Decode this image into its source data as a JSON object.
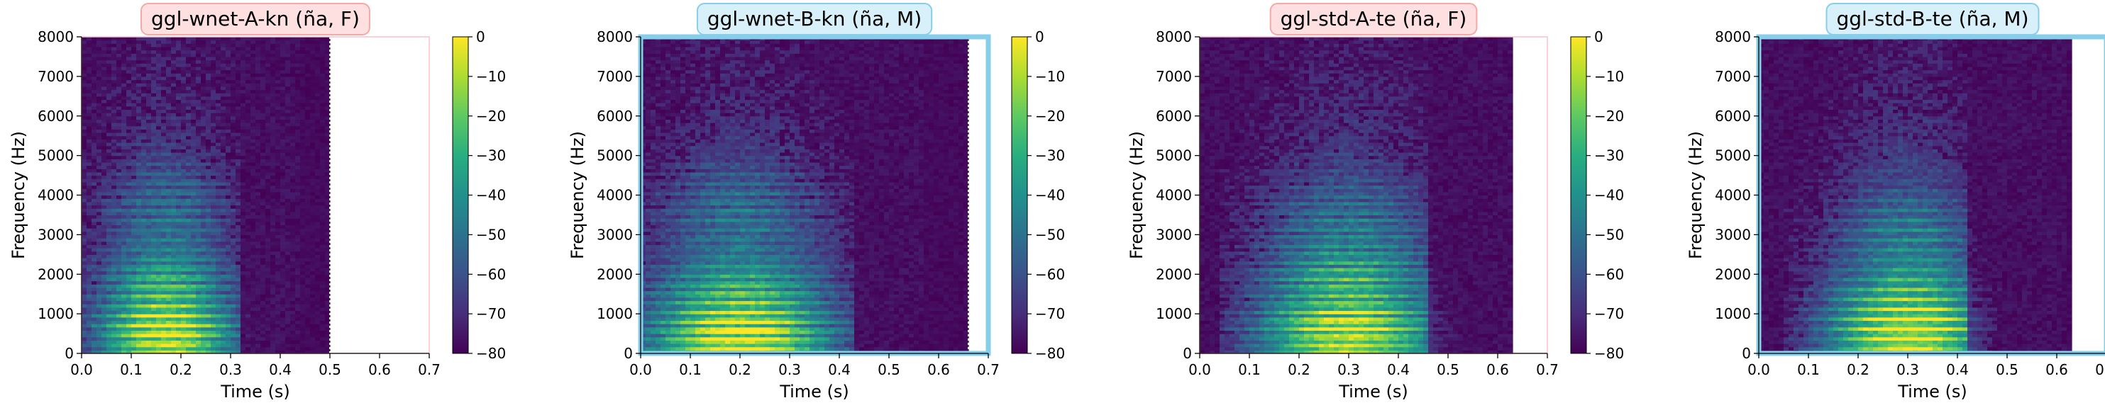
{
  "chart_data": [
    {
      "type": "heatmap",
      "title": "ggl-wnet-A-kn (ña, F)",
      "title_box_color": "#fde0df",
      "title_border_color": "#f4a9a8",
      "frame_color": "#ffc0cb",
      "frame_highlight": false,
      "xlabel": "Time (s)",
      "ylabel": "Frequency (Hz)",
      "xlim": [
        0,
        0.7
      ],
      "ylim": [
        0,
        8000
      ],
      "xticks": [
        "0.0",
        "0.1",
        "0.2",
        "0.3",
        "0.4",
        "0.5",
        "0.6",
        "0.7"
      ],
      "yticks": [
        "0",
        "1000",
        "2000",
        "3000",
        "4000",
        "5000",
        "6000",
        "7000",
        "8000"
      ],
      "duration": 0.5,
      "end_marker": "dotted",
      "colorbar": {
        "min": -80,
        "max": 0,
        "ticks": [
          "0",
          "−10",
          "−20",
          "−30",
          "−40",
          "−50",
          "−60",
          "−70",
          "−80"
        ]
      },
      "pitch_hz": 240,
      "voiced": [
        0.0,
        0.32
      ],
      "peak": 0.17,
      "formants": [
        700,
        1700,
        3800
      ]
    },
    {
      "type": "heatmap",
      "title": "ggl-wnet-B-kn (ña, M)",
      "title_box_color": "#d8f0fa",
      "title_border_color": "#87ceeb",
      "frame_color": "#87ceeb",
      "frame_highlight": true,
      "xlabel": "Time (s)",
      "ylabel": "Frequency (Hz)",
      "xlim": [
        0,
        0.7
      ],
      "ylim": [
        0,
        8000
      ],
      "xticks": [
        "0.0",
        "0.1",
        "0.2",
        "0.3",
        "0.4",
        "0.5",
        "0.6",
        "0.7"
      ],
      "yticks": [
        "0",
        "1000",
        "2000",
        "3000",
        "4000",
        "5000",
        "6000",
        "7000",
        "8000"
      ],
      "duration": 0.66,
      "end_marker": "dotted",
      "colorbar": {
        "min": -80,
        "max": 0,
        "ticks": [
          "0",
          "−10",
          "−20",
          "−30",
          "−40",
          "−50",
          "−60",
          "−70",
          "−80"
        ]
      },
      "pitch_hz": 130,
      "voiced": [
        0.0,
        0.43
      ],
      "peak": 0.2,
      "formants": [
        600,
        1500,
        3800
      ]
    },
    {
      "type": "heatmap",
      "title": "ggl-std-A-te (ña, F)",
      "title_box_color": "#fde0df",
      "title_border_color": "#f4a9a8",
      "frame_color": "#ffc0cb",
      "frame_highlight": false,
      "xlabel": "Time (s)",
      "ylabel": "Frequency (Hz)",
      "xlim": [
        0,
        0.7
      ],
      "ylim": [
        0,
        8000
      ],
      "xticks": [
        "0.0",
        "0.1",
        "0.2",
        "0.3",
        "0.4",
        "0.5",
        "0.6",
        "0.7"
      ],
      "yticks": [
        "0",
        "1000",
        "2000",
        "3000",
        "4000",
        "5000",
        "6000",
        "7000",
        "8000"
      ],
      "duration": 0.63,
      "end_marker": "none",
      "colorbar": {
        "min": -80,
        "max": 0,
        "ticks": [
          "0",
          "−10",
          "−20",
          "−30",
          "−40",
          "−50",
          "−60",
          "−70",
          "−80"
        ]
      },
      "pitch_hz": 210,
      "voiced": [
        0.04,
        0.46
      ],
      "peak": 0.3,
      "formants": [
        800,
        1900,
        3400
      ]
    },
    {
      "type": "heatmap",
      "title": "ggl-std-B-te (ña, M)",
      "title_box_color": "#d8f0fa",
      "title_border_color": "#87ceeb",
      "frame_color": "#87ceeb",
      "frame_highlight": true,
      "xlabel": "Time (s)",
      "ylabel": "Frequency (Hz)",
      "xlim": [
        0,
        0.7
      ],
      "ylim": [
        0,
        8000
      ],
      "xticks": [
        "0.0",
        "0.1",
        "0.2",
        "0.3",
        "0.4",
        "0.5",
        "0.6",
        "0.7"
      ],
      "yticks": [
        "0",
        "1000",
        "2000",
        "3000",
        "4000",
        "5000",
        "6000",
        "7000",
        "8000"
      ],
      "duration": 0.63,
      "end_marker": "none",
      "colorbar": {
        "min": -80,
        "max": 0,
        "ticks": [
          "0",
          "−10",
          "−20",
          "−30",
          "−40",
          "−50",
          "−60",
          "−70",
          "−80"
        ]
      },
      "pitch_hz": 125,
      "voiced": [
        0.05,
        0.42
      ],
      "peak": 0.3,
      "formants": [
        700,
        1400,
        3200
      ]
    }
  ]
}
